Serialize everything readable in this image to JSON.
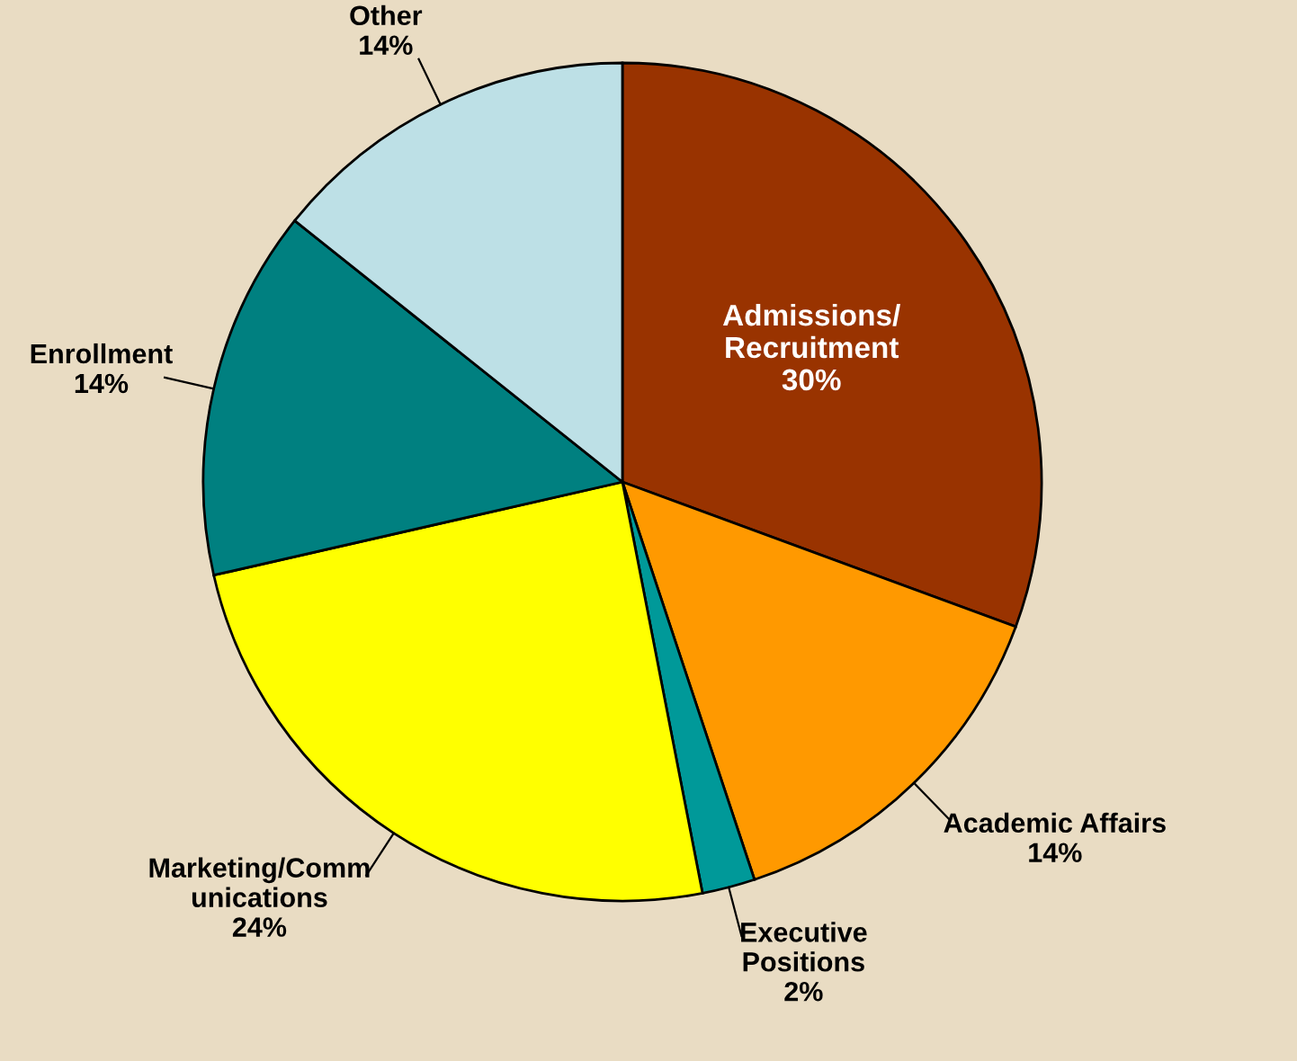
{
  "chart_data": {
    "type": "pie",
    "categories": [
      "Admissions/\nRecruitment",
      "Academic Affairs",
      "Executive\nPositions",
      "Marketing/Comm\nunications",
      "Enrollment",
      "Other"
    ],
    "values": [
      30,
      14,
      2,
      24,
      14,
      14
    ],
    "value_labels": [
      "30%",
      "14%",
      "2%",
      "24%",
      "14%",
      "14%"
    ],
    "colors": [
      "#993300",
      "#ff9900",
      "#009999",
      "#ffff00",
      "#008080",
      "#bde0e6"
    ]
  }
}
